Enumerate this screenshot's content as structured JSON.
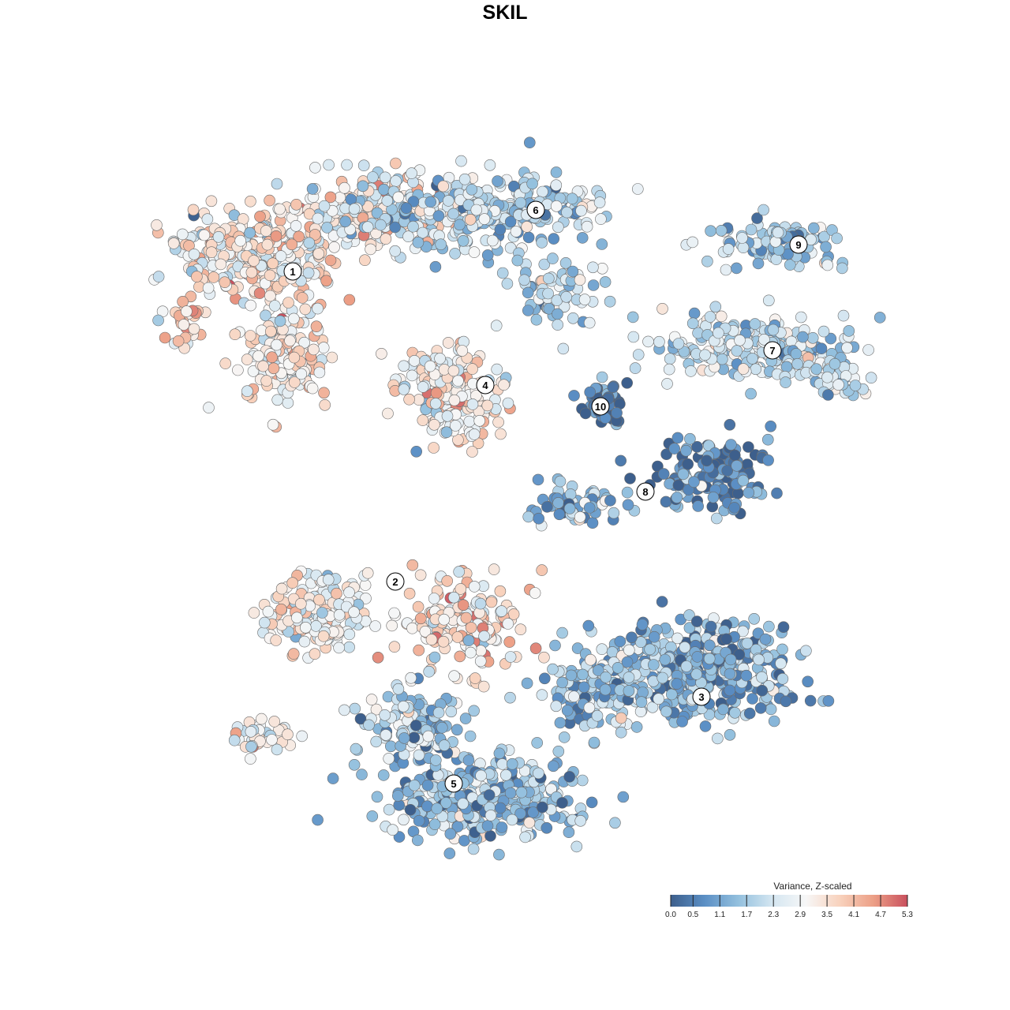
{
  "chart_data": {
    "type": "scatter",
    "title": "SKIL",
    "xlabel": "",
    "ylabel": "",
    "grid": false,
    "legend": {
      "title": "Variance, Z-scaled",
      "placement": "bottom-right",
      "min": 0.0,
      "max": 5.3,
      "ticks": [
        "0.0",
        "0.5",
        "1.1",
        "1.7",
        "2.3",
        "2.9",
        "3.5",
        "4.1",
        "4.7",
        "5.3"
      ],
      "colormap": [
        "#3d5f8c",
        "#5b8fc5",
        "#93c0de",
        "#d4e6f1",
        "#f7f7f7",
        "#f8d2bd",
        "#ec9f86",
        "#c9505e"
      ]
    },
    "clusters": [
      {
        "label": "1",
        "mean_value": 3.2
      },
      {
        "label": "2",
        "mean_value": 3.0
      },
      {
        "label": "3",
        "mean_value": 1.3
      },
      {
        "label": "4",
        "mean_value": 3.1
      },
      {
        "label": "5",
        "mean_value": 1.5
      },
      {
        "label": "6",
        "mean_value": 2.0
      },
      {
        "label": "7",
        "mean_value": 2.2
      },
      {
        "label": "8",
        "mean_value": 0.6
      },
      {
        "label": "9",
        "mean_value": 1.7
      },
      {
        "label": "10",
        "mean_value": 0.3
      }
    ]
  }
}
